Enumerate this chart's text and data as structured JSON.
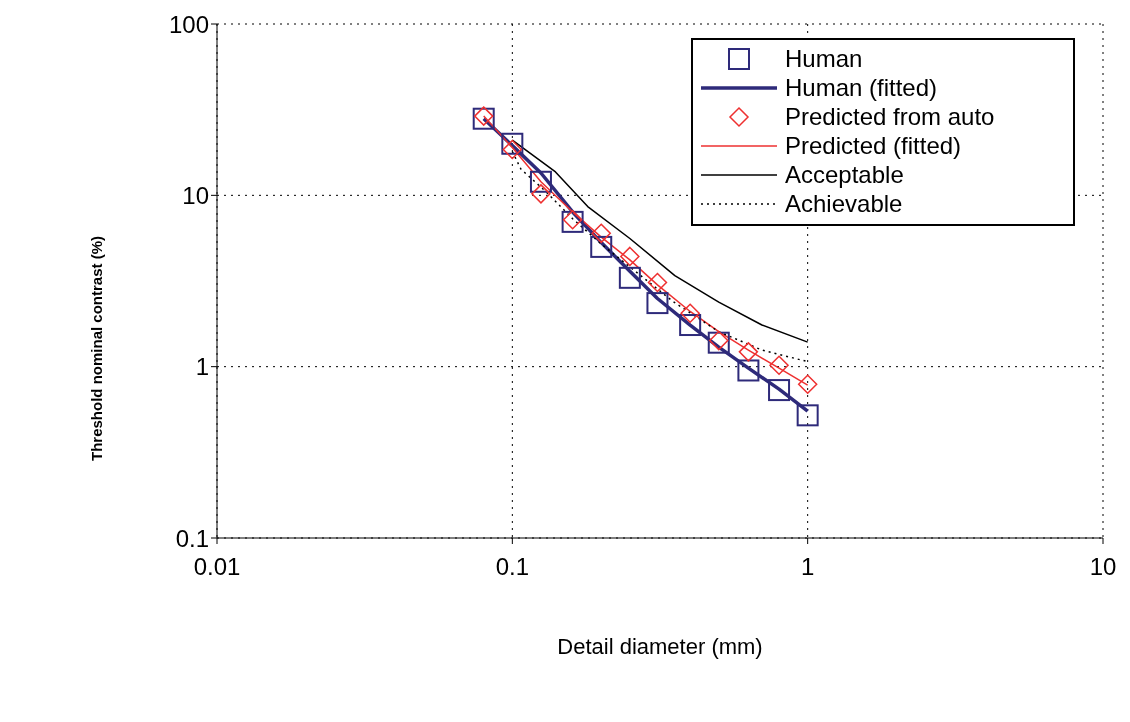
{
  "chart_data": {
    "type": "scatter",
    "xlabel": "Detail diameter (mm)",
    "ylabel": "Threshold nominal contrast (%)",
    "log": "xy",
    "xlim": [
      0.01,
      10
    ],
    "ylim": [
      0.1,
      100
    ],
    "xticks": [
      0.01,
      0.1,
      1,
      10
    ],
    "yticks": [
      0.1,
      1,
      10,
      100
    ],
    "grid": true,
    "legend": "top right",
    "x": [
      0.08,
      0.1,
      0.125,
      0.16,
      0.2,
      0.25,
      0.31,
      0.4,
      0.5,
      0.63,
      0.8,
      1.0
    ],
    "series": [
      {
        "name": "Human",
        "marker": "square",
        "color": "#2e2a7a",
        "values": [
          28,
          20,
          12,
          7,
          5,
          3.3,
          2.35,
          1.75,
          1.38,
          0.95,
          0.73,
          0.52
        ]
      },
      {
        "name": "Human (fitted)",
        "type": "line",
        "line_style": "solid",
        "color": "#2e2a7a",
        "values": [
          28,
          19.5,
          13.5,
          8,
          5.3,
          3.6,
          2.5,
          1.75,
          1.3,
          0.98,
          0.74,
          0.55
        ]
      },
      {
        "name": "Predicted from auto",
        "marker": "diamond",
        "color": "#ee3030",
        "values": [
          29,
          18.5,
          10.2,
          7.2,
          6,
          4.4,
          3.1,
          2.05,
          1.42,
          1.22,
          1.02,
          0.79
        ]
      },
      {
        "name": "Predicted (fitted)",
        "type": "line",
        "line_style": "solid",
        "color": "#ee3030",
        "values": [
          29,
          19,
          12,
          8,
          5.7,
          4.2,
          3,
          2.1,
          1.6,
          1.25,
          0.98,
          0.78
        ]
      },
      {
        "name": "Acceptable",
        "type": "line",
        "line_style": "solid",
        "color": "#000000",
        "x": [
          0.1,
          0.14,
          0.18,
          0.25,
          0.355,
          0.5,
          0.7,
          1
        ],
        "values": [
          21,
          13.7,
          8.6,
          5.6,
          3.4,
          2.38,
          1.75,
          1.39
        ]
      },
      {
        "name": "Achievable",
        "type": "line",
        "line_style": "dotted",
        "color": "#000000",
        "x": [
          0.1,
          0.107,
          0.13,
          0.16,
          0.2,
          0.35,
          0.5,
          0.7,
          1
        ],
        "values": [
          18,
          14.2,
          10.5,
          7.3,
          5.2,
          2.4,
          1.6,
          1.25,
          1.07
        ]
      }
    ]
  }
}
